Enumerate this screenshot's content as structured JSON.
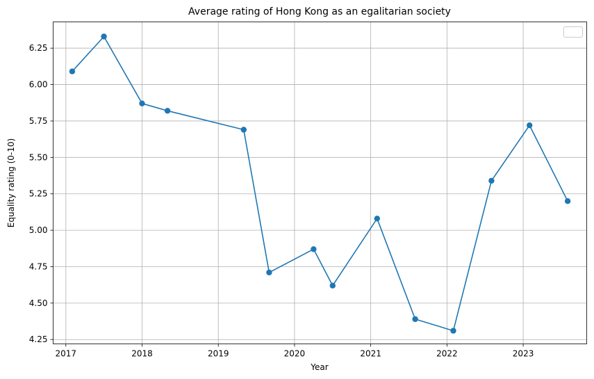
{
  "chart_data": {
    "type": "line",
    "title": "Average rating of Hong Kong as an egalitarian society",
    "xlabel": "Year",
    "ylabel": "Equality rating (0-10)",
    "x_ticks": [
      "2017",
      "2018",
      "2019",
      "2020",
      "2021",
      "2022",
      "2023"
    ],
    "y_ticks": [
      "4.25",
      "4.50",
      "4.75",
      "5.00",
      "5.25",
      "5.50",
      "5.75",
      "6.00",
      "6.25"
    ],
    "xlim": [
      "2016-11",
      "2023-11"
    ],
    "ylim": [
      4.22,
      6.43
    ],
    "grid": true,
    "legend": "top-right, empty",
    "color": "#1f77b4",
    "series": [
      {
        "x": [
          "2017-02",
          "2017-07",
          "2018-01",
          "2018-05",
          "2019-05",
          "2019-09",
          "2020-04",
          "2020-07",
          "2021-02",
          "2021-08",
          "2022-02",
          "2022-08",
          "2023-02",
          "2023-08"
        ],
        "values": [
          6.09,
          6.33,
          5.87,
          5.82,
          5.69,
          4.71,
          4.87,
          4.62,
          5.08,
          4.39,
          4.31,
          5.34,
          5.72,
          5.2
        ]
      }
    ]
  }
}
